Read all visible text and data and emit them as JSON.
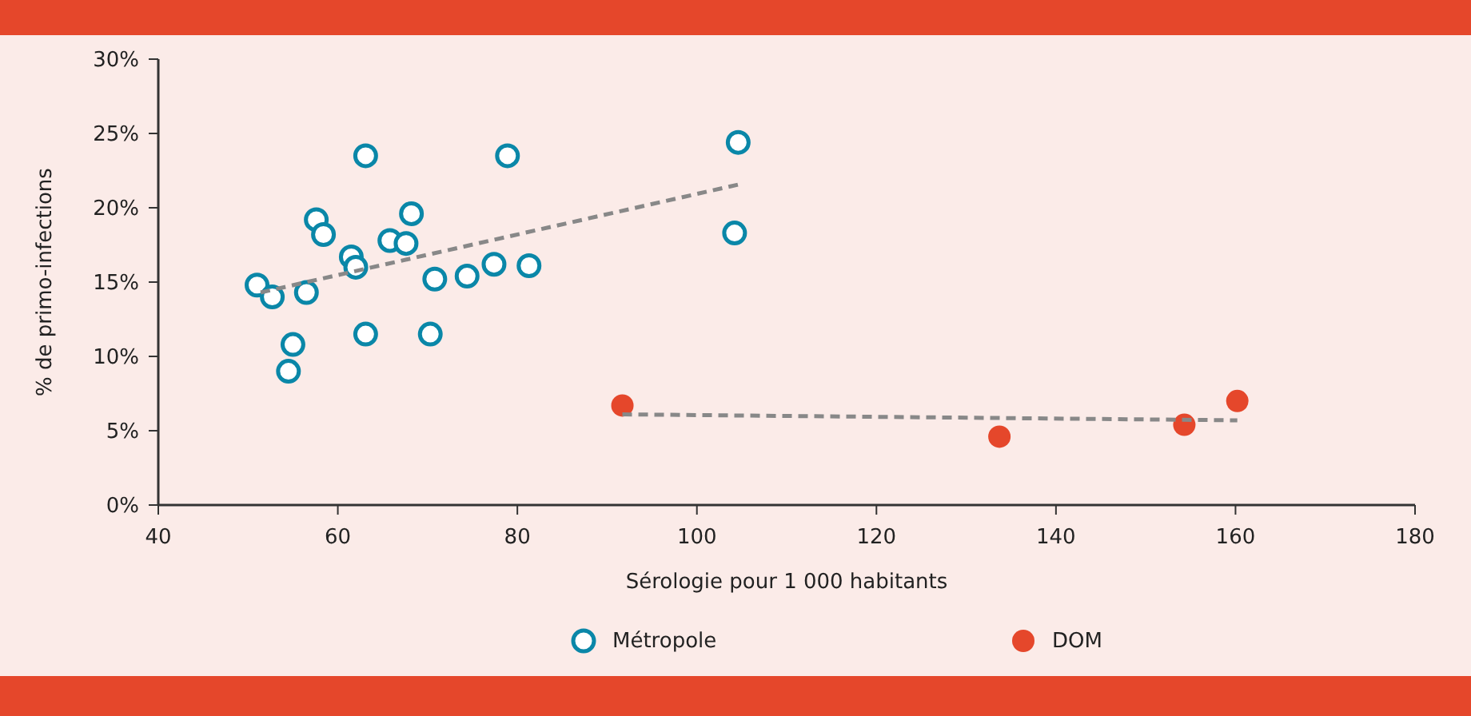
{
  "chart_data": {
    "type": "scatter",
    "xlabel": "Sérologie pour 1 000 habitants",
    "ylabel": "% de primo-infections",
    "xlim": [
      40,
      180
    ],
    "xticks": [
      40,
      60,
      80,
      100,
      120,
      140,
      160,
      180
    ],
    "ylim": [
      0,
      30
    ],
    "yticks": [
      {
        "value": 0,
        "label": "0%"
      },
      {
        "value": 5,
        "label": "5%"
      },
      {
        "value": 10,
        "label": "10%"
      },
      {
        "value": 15,
        "label": "15%"
      },
      {
        "value": 20,
        "label": "20%"
      },
      {
        "value": 25,
        "label": "25%"
      },
      {
        "value": 30,
        "label": "30%"
      }
    ],
    "grid": false,
    "legend": "bottom",
    "series": [
      {
        "name": "Métropole",
        "color": "#0a87a8",
        "marker": "circle",
        "x": [
          51.0,
          52.7,
          56.5,
          55.0,
          54.5,
          57.6,
          58.4,
          61.5,
          62.0,
          63.1,
          63.1,
          65.8,
          67.6,
          68.2,
          70.8,
          70.3,
          74.4,
          77.4,
          78.9,
          81.3,
          104.6,
          104.2
        ],
        "values": [
          14.8,
          14.0,
          14.3,
          10.8,
          9.0,
          19.2,
          18.2,
          16.7,
          16.0,
          23.5,
          11.5,
          17.8,
          17.6,
          19.6,
          15.2,
          11.5,
          15.4,
          16.2,
          23.5,
          16.1,
          24.4,
          18.3
        ]
      },
      {
        "name": "DOM",
        "color": "#e5472b",
        "marker": "circle",
        "x": [
          91.7,
          133.7,
          154.3,
          160.2
        ],
        "values": [
          6.7,
          4.6,
          5.4,
          7.0
        ]
      },
      {
        "type": "line",
        "color": "#888888",
        "line_style": "dashed",
        "marker": "none",
        "x": [
          51.4,
          104.9
        ],
        "values": [
          14.3,
          21.6
        ]
      },
      {
        "type": "line",
        "color": "#888888",
        "line_style": "dashed",
        "marker": "none",
        "x": [
          91.7,
          160.2
        ],
        "values": [
          6.1,
          5.7
        ]
      }
    ]
  }
}
